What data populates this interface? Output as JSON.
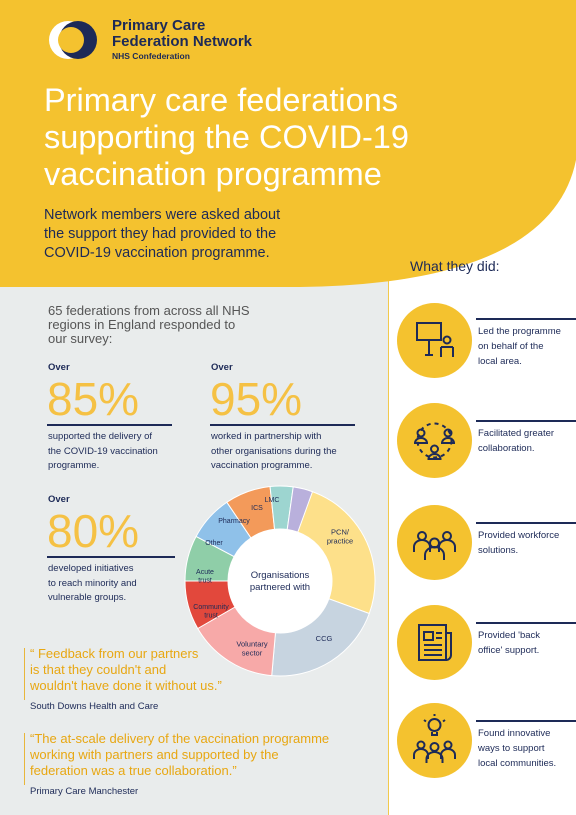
{
  "brand": {
    "name": "Primary Care\nFederation Network",
    "sub": "NHS Confederation"
  },
  "hero": {
    "title": "Primary care federations\nsupporting the COVID-19\nvaccination programme",
    "intro": "Network members were asked about\nthe support they had provided to the\nCOVID-19 vaccination programme."
  },
  "survey": {
    "intro": "65 federations from across all NHS\nregions in England responded to\nour survey:"
  },
  "stats": [
    {
      "over": "Over",
      "percent": "85%",
      "desc": "supported the delivery of\nthe COVID-19 vaccination\nprogramme."
    },
    {
      "over": "Over",
      "percent": "95%",
      "desc": "worked in partnership with\nother organisations during the\nvaccination programme."
    },
    {
      "over": "Over",
      "percent": "80%",
      "desc": "developed initiatives\nto reach minority and\nvulnerable groups."
    }
  ],
  "chart_data": {
    "type": "pie",
    "title": "Organisations partnered with",
    "segments": [
      {
        "label": "PCN/ practice",
        "color": "#fde08a"
      },
      {
        "label": "CCG",
        "color": "#c7d4e0"
      },
      {
        "label": "Voluntary sector",
        "color": "#f7a9a8"
      },
      {
        "label": "Community trust",
        "color": "#e2483c"
      },
      {
        "label": "Acute trust",
        "color": "#8fcea8"
      },
      {
        "label": "Other",
        "color": "#8fc1e9"
      },
      {
        "label": "Pharmacy",
        "color": "#f39a5a"
      },
      {
        "label": "ICS",
        "color": "#9dd5d0"
      },
      {
        "label": "LMC",
        "color": "#b9b0dc"
      }
    ]
  },
  "quotes": [
    {
      "text": "“ Feedback from our partners\n   is that they couldn't and\n   wouldn't have done it without us.”",
      "source": "South Downs Health and Care"
    },
    {
      "text": "“The at-scale delivery of the vaccination programme\n   working with partners and supported by the\n   federation was a true collaboration.”",
      "source": "Primary Care Manchester"
    }
  ],
  "activities": {
    "heading": "What they did:",
    "items": [
      {
        "icon": "presenter-icon",
        "text": "Led the programme\non behalf of the\nlocal area."
      },
      {
        "icon": "collaboration-icon",
        "text": "Facilitated greater\ncollaboration."
      },
      {
        "icon": "workforce-icon",
        "text": "Provided workforce\nsolutions."
      },
      {
        "icon": "document-icon",
        "text": "Provided 'back\noffice' support."
      },
      {
        "icon": "innovation-icon",
        "text": "Found innovative\nways to support\nlocal communities."
      }
    ]
  },
  "colors": {
    "accent": "#f4c22f",
    "navy": "#1d2a57",
    "quote": "#e8a712"
  }
}
